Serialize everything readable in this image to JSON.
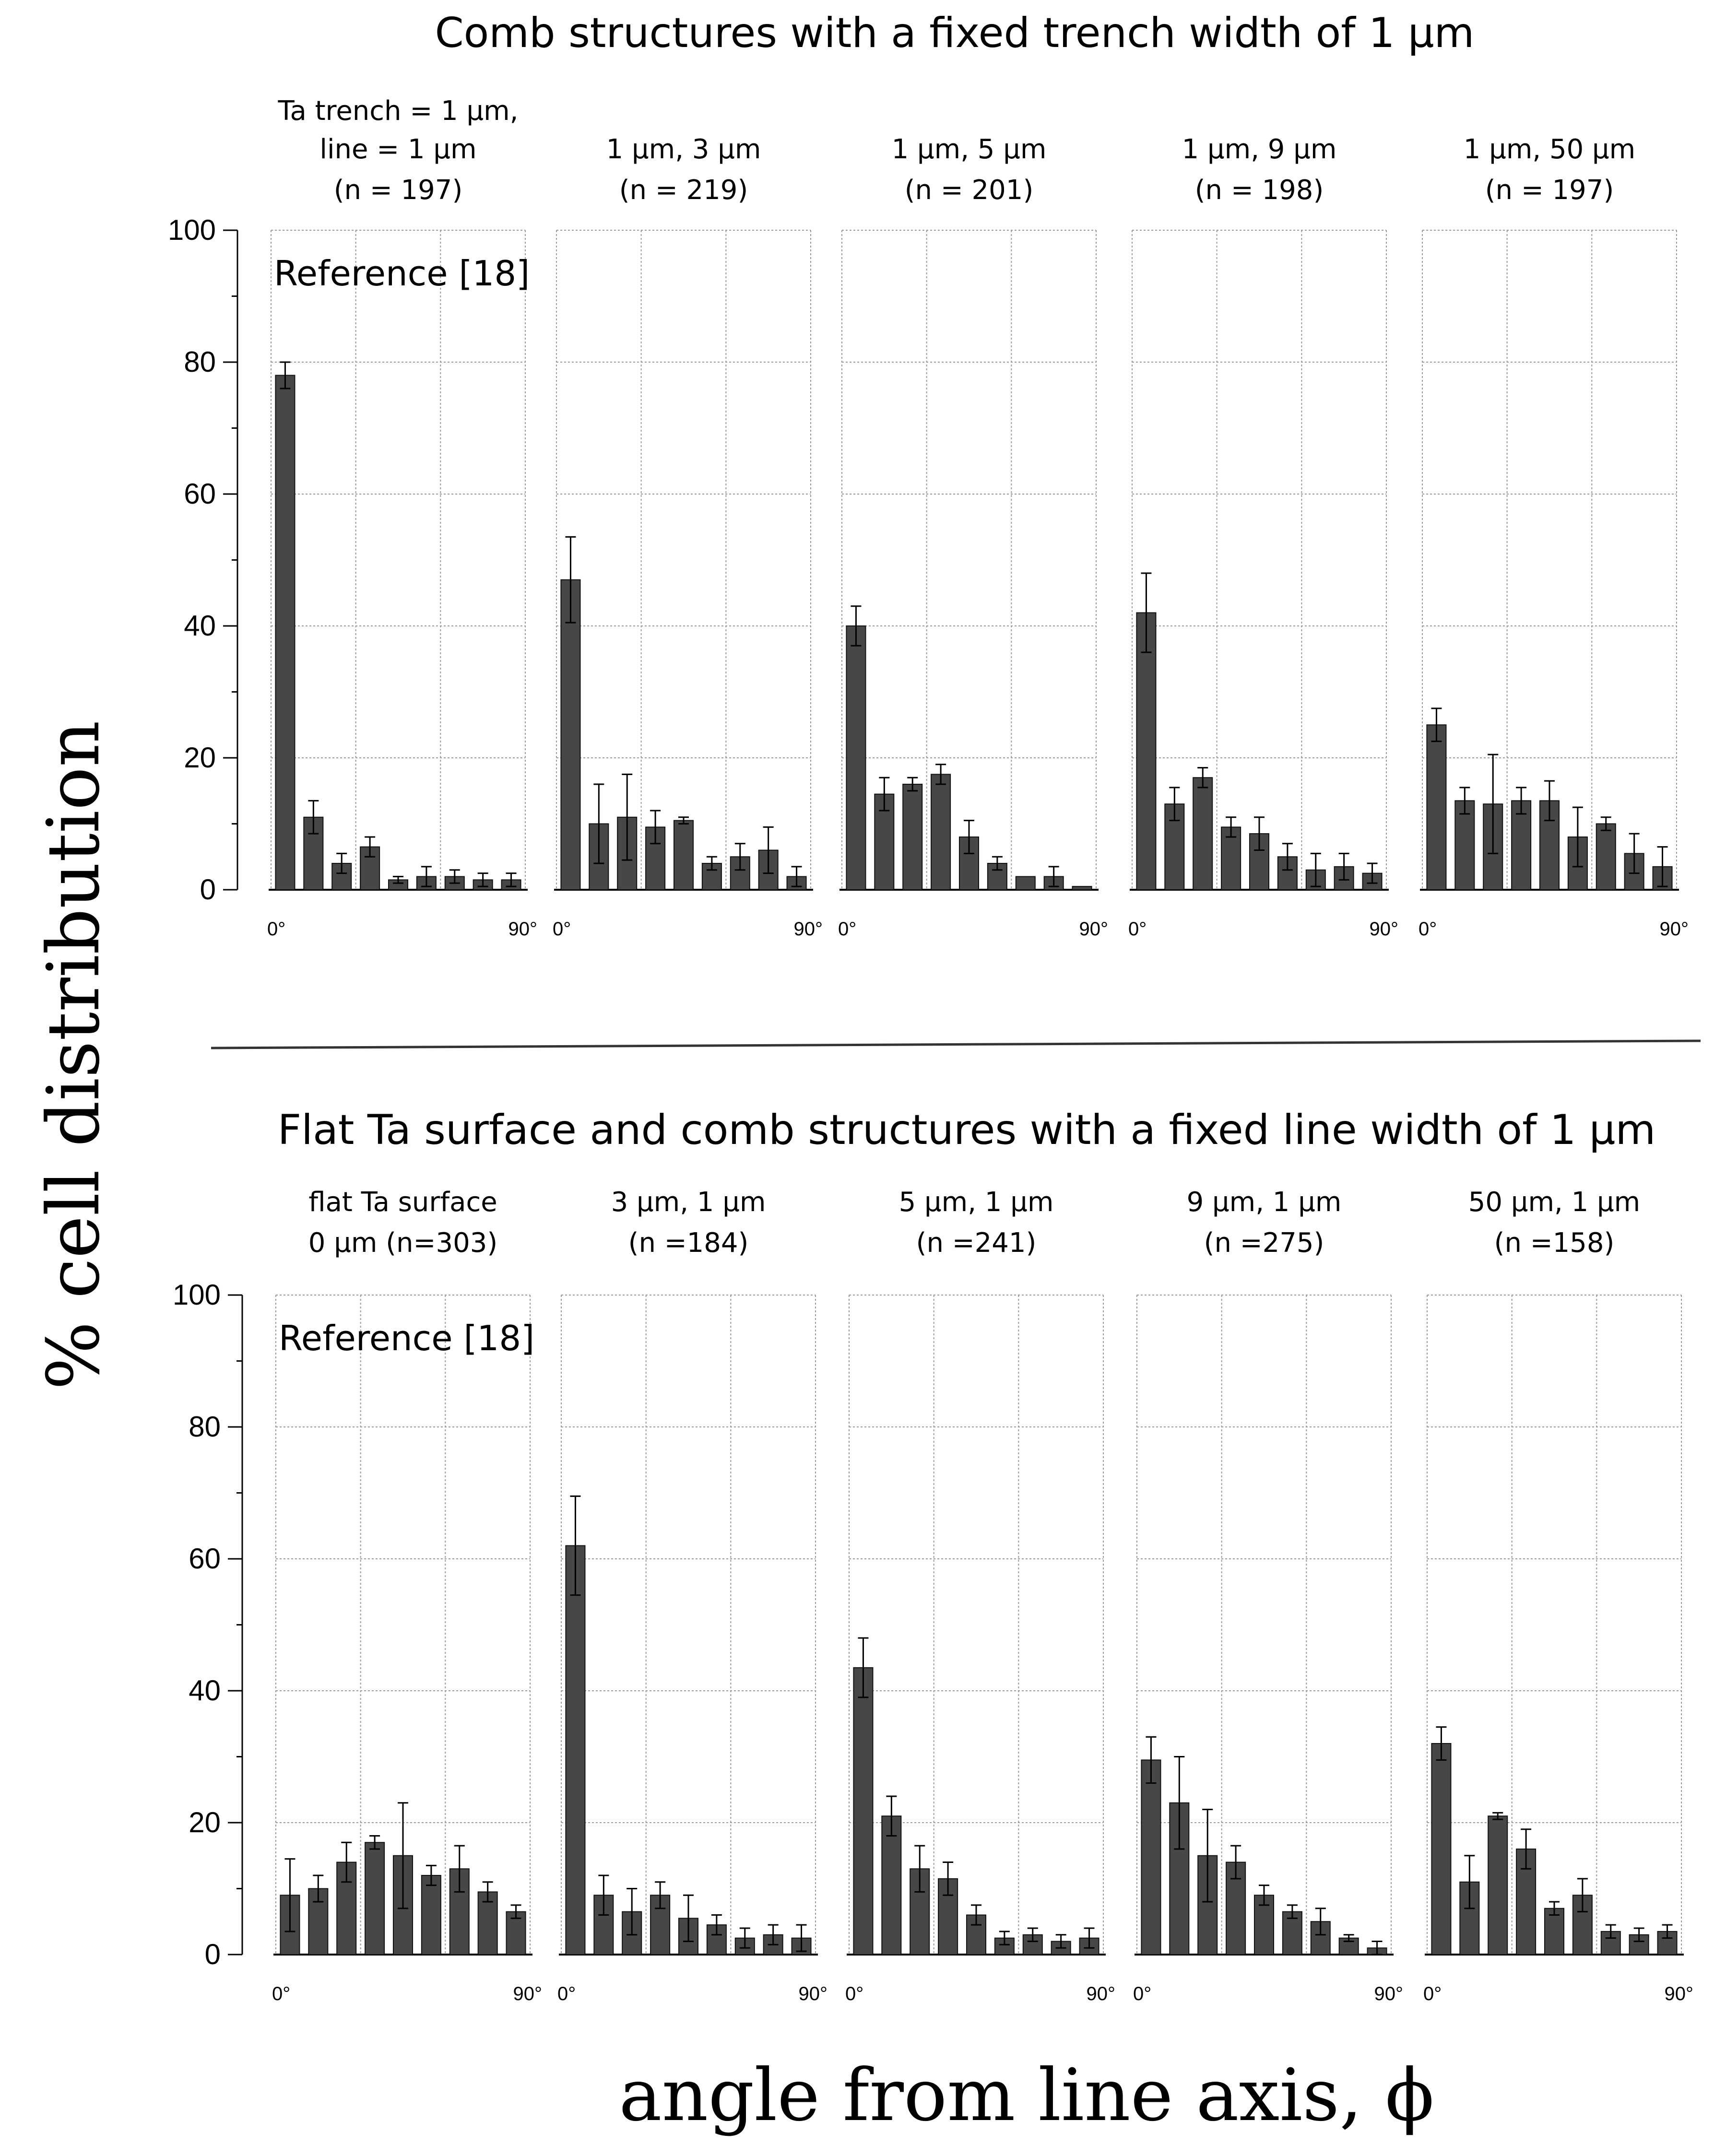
{
  "figure": {
    "y_axis_label": "% cell distribution",
    "x_axis_label": "angle from line axis, ϕ"
  },
  "sections": [
    {
      "title": "Comb structures with a fixed trench width of 1 μm"
    },
    {
      "title": "Flat Ta surface and comb structures with a fixed line width of 1 μm"
    }
  ],
  "chart_data": [
    {
      "type": "bar",
      "row": 0,
      "title_lines": [
        "Ta trench = 1 μm,",
        "line = 1 μm",
        "(n = 197)"
      ],
      "annotation": "Reference [18]",
      "ylabel": "% cell distribution",
      "xlabel": "angle from line axis, ϕ",
      "x_tick_labels": [
        "0°",
        "90°"
      ],
      "ylim": [
        0,
        100
      ],
      "y_ticks": [
        0,
        20,
        40,
        60,
        80,
        100
      ],
      "grid": true,
      "values": [
        78,
        11,
        4,
        6.5,
        1.5,
        2,
        2,
        1.5,
        1.5
      ],
      "errors": [
        2,
        2.5,
        1.5,
        1.5,
        0.5,
        1.5,
        1,
        1,
        1
      ]
    },
    {
      "type": "bar",
      "row": 0,
      "title_lines": [
        "1 μm, 3 μm",
        "(n = 219)"
      ],
      "xlabel": "angle from line axis, ϕ",
      "x_tick_labels": [
        "0°",
        "90°"
      ],
      "ylim": [
        0,
        100
      ],
      "grid": true,
      "values": [
        47,
        10,
        11,
        9.5,
        10.5,
        4,
        5,
        6,
        2
      ],
      "errors": [
        6.5,
        6,
        6.5,
        2.5,
        0.5,
        1,
        2,
        3.5,
        1.5
      ]
    },
    {
      "type": "bar",
      "row": 0,
      "title_lines": [
        "1 μm, 5 μm",
        "(n = 201)"
      ],
      "xlabel": "angle from line axis, ϕ",
      "x_tick_labels": [
        "0°",
        "90°"
      ],
      "ylim": [
        0,
        100
      ],
      "grid": true,
      "values": [
        40,
        14.5,
        16,
        17.5,
        8,
        4,
        2,
        2,
        0.5
      ],
      "errors": [
        3,
        2.5,
        1,
        1.5,
        2.5,
        1,
        0,
        1.5,
        0
      ]
    },
    {
      "type": "bar",
      "row": 0,
      "title_lines": [
        "1 μm, 9 μm",
        "(n = 198)"
      ],
      "xlabel": "angle from line axis, ϕ",
      "x_tick_labels": [
        "0°",
        "90°"
      ],
      "ylim": [
        0,
        100
      ],
      "grid": true,
      "values": [
        42,
        13,
        17,
        9.5,
        8.5,
        5,
        3,
        3.5,
        2.5
      ],
      "errors": [
        6,
        2.5,
        1.5,
        1.5,
        2.5,
        2,
        2.5,
        2,
        1.5
      ]
    },
    {
      "type": "bar",
      "row": 0,
      "title_lines": [
        "1 μm, 50 μm",
        "(n = 197)"
      ],
      "xlabel": "angle from line axis, ϕ",
      "x_tick_labels": [
        "0°",
        "90°"
      ],
      "ylim": [
        0,
        100
      ],
      "grid": true,
      "values": [
        25,
        13.5,
        13,
        13.5,
        13.5,
        8,
        10,
        5.5,
        3.5
      ],
      "errors": [
        2.5,
        2,
        7.5,
        2,
        3,
        4.5,
        1,
        3,
        3
      ]
    },
    {
      "type": "bar",
      "row": 1,
      "title_lines": [
        "flat Ta surface",
        "0 μm  (n=303)"
      ],
      "annotation": "Reference [18]",
      "ylabel": "% cell distribution",
      "xlabel": "angle from line axis, ϕ",
      "x_tick_labels": [
        "0°",
        "90°"
      ],
      "ylim": [
        0,
        100
      ],
      "y_ticks": [
        0,
        20,
        40,
        60,
        80,
        100
      ],
      "grid": true,
      "values": [
        9,
        10,
        14,
        17,
        15,
        12,
        13,
        9.5,
        6.5
      ],
      "errors": [
        5.5,
        2,
        3,
        1,
        8,
        1.5,
        3.5,
        1.5,
        1
      ]
    },
    {
      "type": "bar",
      "row": 1,
      "title_lines": [
        "3 μm, 1 μm",
        "(n =184)"
      ],
      "xlabel": "angle from line axis, ϕ",
      "x_tick_labels": [
        "0°",
        "90°"
      ],
      "ylim": [
        0,
        100
      ],
      "grid": true,
      "values": [
        62,
        9,
        6.5,
        9,
        5.5,
        4.5,
        2.5,
        3,
        2.5
      ],
      "errors": [
        7.5,
        3,
        3.5,
        2,
        3.5,
        1.5,
        1.5,
        1.5,
        2
      ]
    },
    {
      "type": "bar",
      "row": 1,
      "title_lines": [
        "5 μm, 1 μm",
        "(n =241)"
      ],
      "xlabel": "angle from line axis, ϕ",
      "x_tick_labels": [
        "0°",
        "90°"
      ],
      "ylim": [
        0,
        100
      ],
      "grid": true,
      "values": [
        43.5,
        21,
        13,
        11.5,
        6,
        2.5,
        3,
        2,
        2.5
      ],
      "errors": [
        4.5,
        3,
        3.5,
        2.5,
        1.5,
        1,
        1,
        1,
        1.5
      ]
    },
    {
      "type": "bar",
      "row": 1,
      "title_lines": [
        "9 μm, 1 μm",
        "(n =275)"
      ],
      "xlabel": "angle from line axis, ϕ",
      "x_tick_labels": [
        "0°",
        "90°"
      ],
      "ylim": [
        0,
        100
      ],
      "grid": true,
      "values": [
        29.5,
        23,
        15,
        14,
        9,
        6.5,
        5,
        2.5,
        1
      ],
      "errors": [
        3.5,
        7,
        7,
        2.5,
        1.5,
        1,
        2,
        0.5,
        1
      ]
    },
    {
      "type": "bar",
      "row": 1,
      "title_lines": [
        "50 μm, 1 μm",
        "(n =158)"
      ],
      "xlabel": "angle from line axis, ϕ",
      "x_tick_labels": [
        "0°",
        "90°"
      ],
      "ylim": [
        0,
        100
      ],
      "grid": true,
      "values": [
        32,
        11,
        21,
        16,
        7,
        9,
        3.5,
        3,
        3.5
      ],
      "errors": [
        2.5,
        4,
        0.5,
        3,
        1,
        2.5,
        1,
        1,
        1
      ]
    }
  ]
}
